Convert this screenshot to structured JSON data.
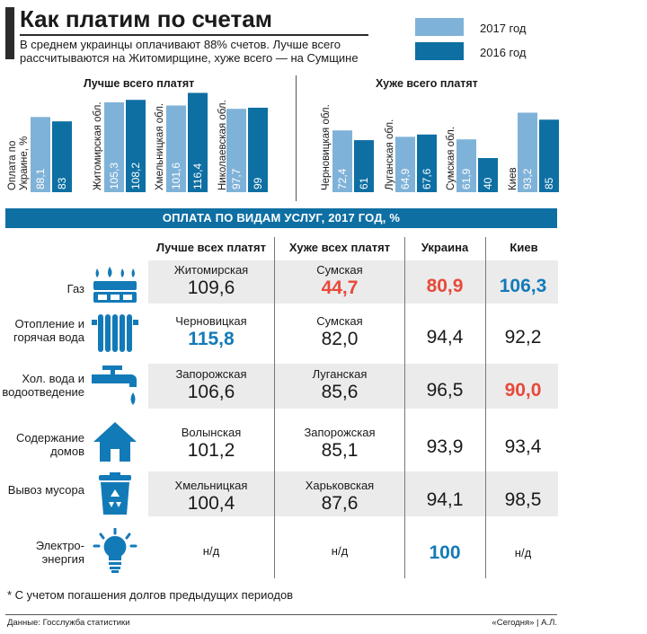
{
  "header": {
    "title": "Как платим по счетам",
    "subtitle": "В среднем украинцы оплачивают 88% счетов. Лучше всего рассчитываются на Житомирщине, хуже всего — на Сумщине"
  },
  "legend": [
    {
      "label": "2017 год",
      "color": "#7fb2d8"
    },
    {
      "label": "2016 год",
      "color": "#0e6fa3"
    }
  ],
  "chart_data": {
    "type": "bar",
    "groups": [
      {
        "title": "Лучше всего платят",
        "categories": [
          "Оплата по Украине, %",
          "Житомирская обл.",
          "Хмельницкая обл.",
          "Николаевская обл."
        ],
        "series": [
          {
            "name": "2017 год",
            "values": [
              88.1,
              105.3,
              101.6,
              97.7
            ],
            "labels": [
              "88,1",
              "105,3",
              "101,6",
              "97,7"
            ]
          },
          {
            "name": "2016 год",
            "values": [
              83,
              108.2,
              116.4,
              99
            ],
            "labels": [
              "83",
              "108,2",
              "116,4",
              "99"
            ]
          }
        ]
      },
      {
        "title": "Хуже всего платят",
        "categories": [
          "Черновицкая обл.",
          "Луганская обл.",
          "Сумская обл.",
          "Киев"
        ],
        "series": [
          {
            "name": "2017 год",
            "values": [
              72.4,
              64.9,
              61.9,
              93.2
            ],
            "labels": [
              "72,4",
              "64,9",
              "61,9",
              "93,2"
            ]
          },
          {
            "name": "2016 год",
            "values": [
              61,
              67.6,
              40,
              85
            ],
            "labels": [
              "61",
              "67,6",
              "40",
              "85"
            ]
          }
        ]
      }
    ]
  },
  "table": {
    "title": "ОПЛАТА ПО ВИДАМ УСЛУГ, 2017 ГОД, %",
    "columns": [
      "Лучше всех платят",
      "Хуже всех платят",
      "Украина",
      "Киев"
    ],
    "rows": [
      {
        "label": "Газ",
        "icon": "gas-burner-icon",
        "best_region": "Житомирская",
        "best_value": "109,6",
        "worst_region": "Сумская",
        "worst_value": "44,7",
        "ukraine": "80,9",
        "kyiv": "106,3"
      },
      {
        "label": "Отопление и горячая вода",
        "icon": "radiator-icon",
        "best_region": "Черновицкая",
        "best_value": "115,8",
        "worst_region": "Сумская",
        "worst_value": "82,0",
        "ukraine": "94,4",
        "kyiv": "92,2"
      },
      {
        "label": "Хол. вода и водоотведение",
        "icon": "water-tap-icon",
        "best_region": "Запорожская",
        "best_value": "106,6",
        "worst_region": "Луганская",
        "worst_value": "85,6",
        "ukraine": "96,5",
        "kyiv": "90,0"
      },
      {
        "label": "Содержание домов",
        "icon": "house-icon",
        "best_region": "Волынская",
        "best_value": "101,2",
        "worst_region": "Запорожская",
        "worst_value": "85,1",
        "ukraine": "93,9",
        "kyiv": "93,4"
      },
      {
        "label": "Вывоз мусора",
        "icon": "recycle-bin-icon",
        "best_region": "Хмельницкая",
        "best_value": "100,4",
        "worst_region": "Харьковская",
        "worst_value": "87,6",
        "ukraine": "94,1",
        "kyiv": "98,5"
      },
      {
        "label": "Электро-энергия",
        "icon": "light-bulb-icon",
        "best_region": "",
        "best_value": "н/д",
        "worst_region": "",
        "worst_value": "н/д",
        "ukraine": "100",
        "kyiv": "н/д"
      }
    ]
  },
  "footnote": "* С учетом погашения долгов предыдущих периодов",
  "source": "Данные: Госслужба статистики",
  "credit": "«Сегодня» | А.Л."
}
